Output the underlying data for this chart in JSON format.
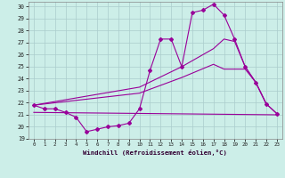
{
  "xlabel": "Windchill (Refroidissement éolien,°C)",
  "bg_color": "#cceee8",
  "grid_color": "#aacccc",
  "line_color": "#990099",
  "xlim": [
    -0.5,
    23.5
  ],
  "ylim": [
    19,
    30.4
  ],
  "xticks": [
    0,
    1,
    2,
    3,
    4,
    5,
    6,
    7,
    8,
    9,
    10,
    11,
    12,
    13,
    14,
    15,
    16,
    17,
    18,
    19,
    20,
    21,
    22,
    23
  ],
  "yticks": [
    19,
    20,
    21,
    22,
    23,
    24,
    25,
    26,
    27,
    28,
    29,
    30
  ],
  "series1_x": [
    0,
    1,
    2,
    3,
    4,
    5,
    6,
    7,
    8,
    9,
    10,
    11,
    12,
    13,
    14,
    15,
    16,
    17,
    18,
    19,
    20,
    21,
    22,
    23
  ],
  "series1_y": [
    21.8,
    21.5,
    21.5,
    21.2,
    20.8,
    19.6,
    19.8,
    20.0,
    20.1,
    20.3,
    21.5,
    24.7,
    27.3,
    27.3,
    25.0,
    29.5,
    29.7,
    30.2,
    29.3,
    27.3,
    25.0,
    23.7,
    21.9,
    21.1
  ],
  "series2_x": [
    0,
    23
  ],
  "series2_y": [
    21.2,
    21.0
  ],
  "series3_x": [
    0,
    10,
    14,
    17,
    18,
    19,
    20,
    21,
    22
  ],
  "series3_y": [
    21.8,
    23.3,
    25.0,
    26.5,
    27.3,
    27.1,
    25.0,
    23.7,
    21.9
  ],
  "series4_x": [
    0,
    10,
    14,
    17,
    18,
    19,
    20,
    21,
    22,
    23
  ],
  "series4_y": [
    21.8,
    22.8,
    24.1,
    25.2,
    24.8,
    24.8,
    24.8,
    23.7,
    21.9,
    21.1
  ]
}
